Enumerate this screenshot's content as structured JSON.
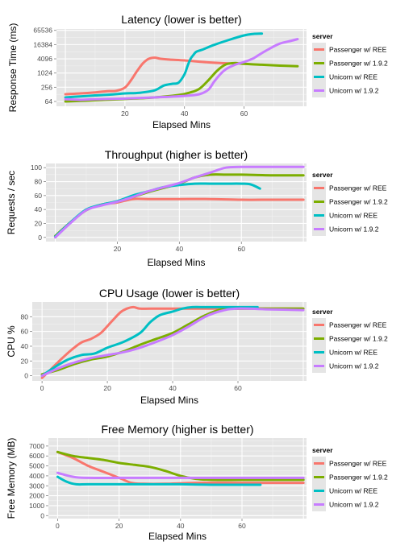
{
  "chart_data": [
    {
      "type": "line",
      "title": "Latency (lower is better)",
      "xlabel": "Elapsed Mins",
      "ylabel": "Response Time (ms)",
      "yscale": "log2",
      "xlim": [
        -3,
        81
      ],
      "ylim": [
        40,
        75000
      ],
      "xticks": [
        20,
        40,
        60
      ],
      "yticks": [
        64,
        256,
        1024,
        4096,
        16384,
        65536
      ],
      "legend": {
        "title": "server",
        "position": "right"
      },
      "series": [
        {
          "name": "Passenger w/ REE",
          "color": "#F8766D",
          "x": [
            0,
            5,
            10,
            14,
            17,
            20,
            22,
            24,
            26,
            28,
            30,
            32,
            35,
            40,
            45,
            50,
            55
          ],
          "y": [
            130,
            140,
            155,
            175,
            180,
            250,
            500,
            1200,
            2600,
            4100,
            4600,
            4100,
            3800,
            3500,
            3100,
            2800,
            2600
          ]
        },
        {
          "name": "Passenger w/ 1.9.2",
          "color": "#7CAE00",
          "x": [
            0,
            10,
            20,
            30,
            38,
            42,
            45,
            48,
            51,
            54,
            57,
            60,
            66,
            72,
            78
          ],
          "y": [
            64,
            72,
            82,
            95,
            120,
            155,
            220,
            500,
            1300,
            2400,
            2700,
            2500,
            2300,
            2100,
            2000
          ]
        },
        {
          "name": "Unicorn w/ REE",
          "color": "#00BFC4",
          "x": [
            0,
            5,
            10,
            15,
            20,
            25,
            30,
            33,
            36,
            38,
            40,
            41,
            42,
            43,
            44,
            46,
            50,
            55,
            60,
            63,
            66
          ],
          "y": [
            95,
            105,
            115,
            125,
            140,
            150,
            190,
            300,
            360,
            400,
            900,
            2000,
            4000,
            6000,
            8200,
            10000,
            16000,
            26000,
            40000,
            46000,
            48000
          ]
        },
        {
          "name": "Unicorn w/ 1.9.2",
          "color": "#C77CFF",
          "x": [
            0,
            5,
            10,
            20,
            30,
            40,
            45,
            48,
            50,
            52,
            54,
            57,
            60,
            63,
            65,
            68,
            72,
            76,
            78
          ],
          "y": [
            80,
            75,
            80,
            85,
            95,
            110,
            130,
            200,
            450,
            900,
            1500,
            2300,
            3000,
            4200,
            6000,
            10000,
            18000,
            24000,
            28000
          ]
        }
      ]
    },
    {
      "type": "line",
      "title": "Throughput (higher is better)",
      "xlabel": "Elapsed Mins",
      "ylabel": "Requests / sec",
      "xlim": [
        -3,
        81
      ],
      "ylim": [
        -6,
        106
      ],
      "xticks": [
        20,
        40,
        60
      ],
      "yticks": [
        0,
        20,
        40,
        60,
        80,
        100
      ],
      "legend": {
        "title": "server",
        "position": "right"
      },
      "series": [
        {
          "name": "Passenger w/ REE",
          "color": "#F8766D",
          "x": [
            0,
            5,
            10,
            15,
            20,
            25,
            30,
            40,
            50,
            60,
            70,
            80
          ],
          "y": [
            2,
            22,
            39,
            47,
            50,
            55,
            55,
            55,
            55,
            54,
            54,
            54
          ]
        },
        {
          "name": "Passenger w/ 1.9.2",
          "color": "#7CAE00",
          "x": [
            0,
            5,
            10,
            15,
            20,
            25,
            30,
            35,
            40,
            45,
            50,
            55,
            60,
            70,
            80
          ],
          "y": [
            2,
            22,
            39,
            47,
            51,
            58,
            65,
            71,
            77,
            86,
            90,
            90,
            90,
            89,
            89
          ]
        },
        {
          "name": "Unicorn w/ REE",
          "color": "#00BFC4",
          "x": [
            0,
            5,
            10,
            15,
            20,
            25,
            30,
            35,
            40,
            45,
            50,
            55,
            60,
            63,
            66
          ],
          "y": [
            1,
            22,
            40,
            47,
            52,
            60,
            66,
            72,
            75,
            77,
            77,
            77,
            77,
            76,
            70
          ]
        },
        {
          "name": "Unicorn w/ 1.9.2",
          "color": "#C77CFF",
          "x": [
            0,
            5,
            10,
            15,
            20,
            25,
            30,
            35,
            40,
            45,
            50,
            55,
            60,
            70,
            80
          ],
          "y": [
            0,
            21,
            39,
            46,
            51,
            58,
            66,
            72,
            78,
            86,
            93,
            100,
            101,
            101,
            101
          ]
        }
      ]
    },
    {
      "type": "line",
      "title": "CPU Usage (lower is better)",
      "xlabel": "Elapsed Mins",
      "ylabel": "CPU %",
      "xlim": [
        -3,
        81
      ],
      "ylim": [
        -7,
        100
      ],
      "xticks": [
        0,
        20,
        40,
        60
      ],
      "yticks": [
        0,
        20,
        40,
        60,
        80
      ],
      "legend": {
        "title": "server",
        "position": "right"
      },
      "series": [
        {
          "name": "Passenger w/ REE",
          "color": "#F8766D",
          "x": [
            0,
            3,
            6,
            9,
            12,
            15,
            18,
            21,
            24,
            26,
            28,
            30,
            35,
            40,
            50,
            60,
            70,
            80
          ],
          "y": [
            -3,
            10,
            23,
            35,
            45,
            50,
            58,
            72,
            86,
            91,
            93,
            91,
            91,
            91,
            91,
            91,
            91,
            91
          ]
        },
        {
          "name": "Passenger w/ 1.9.2",
          "color": "#7CAE00",
          "x": [
            0,
            5,
            10,
            15,
            20,
            25,
            30,
            35,
            40,
            45,
            50,
            55,
            60,
            70,
            80
          ],
          "y": [
            2,
            8,
            16,
            22,
            26,
            33,
            42,
            50,
            58,
            70,
            82,
            90,
            91,
            91,
            91
          ]
        },
        {
          "name": "Unicorn w/ REE",
          "color": "#00BFC4",
          "x": [
            0,
            4,
            8,
            12,
            16,
            20,
            25,
            30,
            33,
            36,
            40,
            43,
            46,
            50,
            55,
            60,
            66
          ],
          "y": [
            0,
            12,
            22,
            28,
            30,
            38,
            46,
            58,
            72,
            82,
            87,
            91,
            93,
            93,
            93,
            93,
            93
          ]
        },
        {
          "name": "Unicorn w/ 1.9.2",
          "color": "#C77CFF",
          "x": [
            0,
            5,
            10,
            15,
            20,
            25,
            30,
            35,
            40,
            45,
            50,
            55,
            60,
            70,
            80
          ],
          "y": [
            0,
            10,
            18,
            24,
            28,
            32,
            38,
            46,
            55,
            67,
            80,
            88,
            91,
            90,
            89
          ]
        }
      ]
    },
    {
      "type": "line",
      "title": "Free Memory (higher is better)",
      "xlabel": "Elapsed Mins",
      "ylabel": "Free Memory (MB)",
      "xlim": [
        -3,
        81
      ],
      "ylim": [
        -300,
        7800
      ],
      "xticks": [
        0,
        20,
        40,
        60
      ],
      "yticks": [
        0,
        1000,
        2000,
        3000,
        4000,
        5000,
        6000,
        7000
      ],
      "legend": {
        "title": "server",
        "position": "right"
      },
      "series": [
        {
          "name": "Passenger w/ REE",
          "color": "#F8766D",
          "x": [
            0,
            5,
            10,
            15,
            20,
            24,
            28,
            35,
            45,
            60,
            80
          ],
          "y": [
            6400,
            5800,
            5000,
            4400,
            3800,
            3300,
            3200,
            3200,
            3300,
            3300,
            3300
          ]
        },
        {
          "name": "Passenger w/ 1.9.2",
          "color": "#7CAE00",
          "x": [
            0,
            5,
            10,
            15,
            20,
            25,
            30,
            35,
            40,
            45,
            50,
            60,
            70,
            80
          ],
          "y": [
            6400,
            6000,
            5800,
            5600,
            5300,
            5100,
            4900,
            4500,
            4000,
            3700,
            3600,
            3600,
            3600,
            3600
          ]
        },
        {
          "name": "Unicorn w/ REE",
          "color": "#00BFC4",
          "x": [
            0,
            3,
            6,
            10,
            20,
            30,
            40,
            50,
            60,
            66
          ],
          "y": [
            3900,
            3400,
            3150,
            3150,
            3150,
            3150,
            3150,
            3100,
            3100,
            3100
          ]
        },
        {
          "name": "Unicorn w/ 1.9.2",
          "color": "#C77CFF",
          "x": [
            0,
            5,
            10,
            20,
            30,
            40,
            50,
            60,
            70,
            80
          ],
          "y": [
            4300,
            3900,
            3800,
            3800,
            3800,
            3800,
            3800,
            3800,
            3800,
            3800
          ]
        }
      ]
    }
  ]
}
